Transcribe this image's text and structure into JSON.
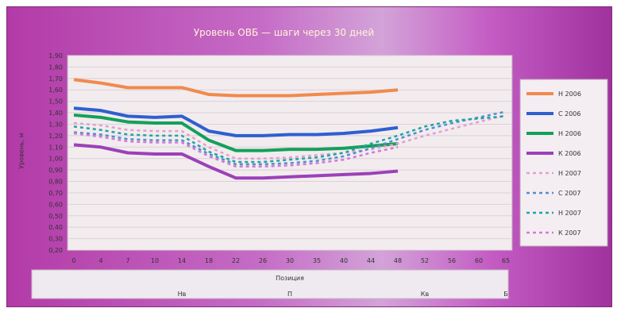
{
  "chart_data": {
    "type": "line",
    "title": "Уровень ОВБ — шаги через 30 дней",
    "xlabel": "Позиция",
    "ylabel": "Уровень, м",
    "x": [
      "0",
      "4",
      "7",
      "10",
      "14",
      "18",
      "22",
      "26",
      "30",
      "35",
      "40",
      "44",
      "48",
      "52",
      "56",
      "60",
      "65"
    ],
    "y_ticks": [
      "1,90",
      "1,80",
      "1,70",
      "1,60",
      "1,50",
      "1,40",
      "1,30",
      "1,20",
      "1,10",
      "1,00",
      "0,90",
      "0,80",
      "0,70",
      "0,60",
      "0,50",
      "0,40",
      "0,30",
      "0,20"
    ],
    "ylim": [
      0.2,
      1.9
    ],
    "groups": [
      "Нв",
      "П",
      "Кв",
      "Б"
    ],
    "series": [
      {
        "name": "Н 2006",
        "color": "#f08a4c",
        "dash": false,
        "values": [
          1.69,
          1.66,
          1.62,
          1.62,
          1.62,
          1.56,
          1.55,
          1.55,
          1.55,
          1.56,
          1.57,
          1.58,
          1.6,
          null,
          null,
          null,
          null
        ]
      },
      {
        "name": "С 2006",
        "color": "#2f5fd0",
        "dash": false,
        "values": [
          1.44,
          1.42,
          1.37,
          1.36,
          1.37,
          1.24,
          1.2,
          1.2,
          1.21,
          1.21,
          1.22,
          1.24,
          1.27,
          null,
          null,
          null,
          null
        ]
      },
      {
        "name": "Н 2006",
        "color": "#14a05a",
        "dash": false,
        "values": [
          1.38,
          1.36,
          1.32,
          1.31,
          1.31,
          1.16,
          1.07,
          1.07,
          1.08,
          1.08,
          1.09,
          1.11,
          1.13,
          null,
          null,
          null,
          null
        ]
      },
      {
        "name": "К 2006",
        "color": "#9c40b8",
        "dash": false,
        "values": [
          1.12,
          1.1,
          1.05,
          1.04,
          1.04,
          0.93,
          0.83,
          0.83,
          0.84,
          0.85,
          0.86,
          0.87,
          0.89,
          null,
          null,
          null,
          null
        ]
      },
      {
        "name": "Н 2007",
        "color": "#e39fce",
        "dash": true,
        "values": [
          1.31,
          1.29,
          1.25,
          1.24,
          1.24,
          1.1,
          1.0,
          1.0,
          1.01,
          1.03,
          1.05,
          1.08,
          1.13,
          1.2,
          1.26,
          1.32,
          1.38
        ]
      },
      {
        "name": "С 2007",
        "color": "#4f8fd0",
        "dash": true,
        "values": [
          1.23,
          1.21,
          1.17,
          1.16,
          1.16,
          1.04,
          0.95,
          0.95,
          0.96,
          0.98,
          1.02,
          1.09,
          1.17,
          1.25,
          1.31,
          1.36,
          1.41
        ]
      },
      {
        "name": "Н 2007",
        "color": "#1fa5a0",
        "dash": true,
        "values": [
          1.28,
          1.25,
          1.21,
          1.2,
          1.2,
          1.06,
          0.97,
          0.97,
          0.99,
          1.01,
          1.05,
          1.13,
          1.2,
          1.28,
          1.33,
          1.35,
          1.37
        ]
      },
      {
        "name": "К 2007",
        "color": "#d27ad0",
        "dash": true,
        "values": [
          1.22,
          1.19,
          1.15,
          1.14,
          1.14,
          1.02,
          0.93,
          0.93,
          0.94,
          0.96,
          0.99,
          1.05,
          1.1,
          null,
          null,
          null,
          null
        ]
      }
    ]
  }
}
